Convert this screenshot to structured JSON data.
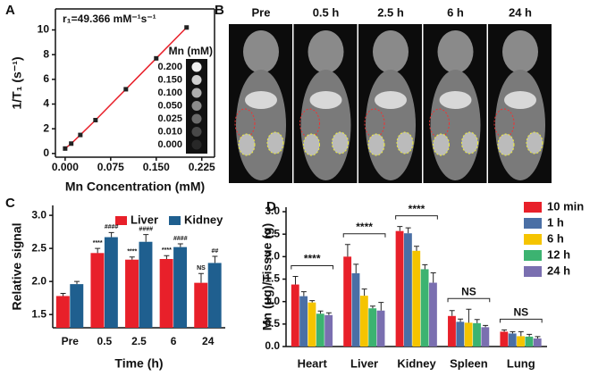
{
  "panels": [
    "A",
    "B",
    "C",
    "D"
  ],
  "images": {
    "labels": [
      "Pre",
      "0.5 h",
      "2.5 h",
      "6 h",
      "24 h"
    ]
  },
  "chart_data": [
    {
      "type": "line",
      "annotation": "r₁=49.366 mM⁻¹s⁻¹",
      "xlabel": "Mn Concentration (mM)",
      "ylabel": "1/T₁ (s⁻¹)",
      "x": [
        0,
        0.01,
        0.025,
        0.05,
        0.1,
        0.15,
        0.2
      ],
      "values": [
        0.4,
        0.8,
        1.5,
        2.7,
        5.2,
        7.7,
        10.2
      ],
      "color": "#e8202a",
      "marker_color": "#222222",
      "xlim": [
        -0.016,
        0.246
      ],
      "xticks": [
        {
          "value": 0,
          "label": "0.000"
        },
        {
          "value": 0.075,
          "label": "0.075"
        },
        {
          "value": 0.15,
          "label": "0.150"
        },
        {
          "value": 0.225,
          "label": "0.225"
        }
      ],
      "ylim": [
        -0.3,
        11.7
      ],
      "yticks": [
        0,
        2,
        4,
        6,
        8,
        10
      ],
      "inset": {
        "title": "Mn (mM)",
        "labels": [
          "0.200",
          "0.150",
          "0.100",
          "0.050",
          "0.025",
          "0.010",
          "0.000"
        ]
      }
    },
    {
      "type": "bar",
      "xlabel": "Time (h)",
      "ylabel": "Relative signal",
      "legend": "top",
      "categories": [
        "Pre",
        "0.5",
        "2.5",
        "6",
        "24"
      ],
      "series": [
        {
          "name": "Liver",
          "color": "#e8202a",
          "values": [
            1.78,
            2.43,
            2.33,
            2.34,
            1.98
          ],
          "errors": [
            0.04,
            0.07,
            0.04,
            0.05,
            0.14
          ],
          "annotations": [
            null,
            "****",
            "****",
            "****",
            "NS"
          ]
        },
        {
          "name": "Kidney",
          "color": "#1f5f8f",
          "values": [
            1.96,
            2.67,
            2.6,
            2.52,
            2.28
          ],
          "errors": [
            0.04,
            0.07,
            0.11,
            0.05,
            0.1
          ],
          "annotations": [
            null,
            "####",
            "####",
            "####",
            "##"
          ]
        }
      ],
      "ylim": [
        1.3,
        3.15
      ],
      "yticks": [
        {
          "value": 1.5,
          "label": "1.5"
        },
        {
          "value": 2,
          "label": "2.0"
        },
        {
          "value": 2.5,
          "label": "2.5"
        },
        {
          "value": 3,
          "label": "3.0"
        }
      ]
    },
    {
      "type": "bar",
      "ylabel": "Mn (μg)/Tissue (g)",
      "legend": "right",
      "categories": [
        "Heart",
        "Liver",
        "Kidney",
        "Spleen",
        "Lung"
      ],
      "series": [
        {
          "name": "10 min",
          "color": "#e8202a",
          "values": [
            1.38,
            2.0,
            2.57,
            0.68,
            0.33
          ],
          "errors": [
            0.18,
            0.27,
            0.1,
            0.12,
            0.04
          ]
        },
        {
          "name": "1 h",
          "color": "#4a6fa5",
          "values": [
            1.12,
            1.63,
            2.52,
            0.55,
            0.29
          ],
          "errors": [
            0.1,
            0.2,
            0.12,
            0.06,
            0.04
          ]
        },
        {
          "name": "6 h",
          "color": "#f5c400",
          "values": [
            0.98,
            1.13,
            2.13,
            0.53,
            0.23
          ],
          "errors": [
            0.04,
            0.15,
            0.1,
            0.3,
            0.1
          ]
        },
        {
          "name": "12 h",
          "color": "#3cb371",
          "values": [
            0.73,
            0.85,
            1.72,
            0.52,
            0.22
          ],
          "errors": [
            0.06,
            0.05,
            0.1,
            0.08,
            0.05
          ]
        },
        {
          "name": "24 h",
          "color": "#7a6fb0",
          "values": [
            0.7,
            0.8,
            1.42,
            0.43,
            0.18
          ],
          "errors": [
            0.05,
            0.18,
            0.22,
            0.04,
            0.04
          ]
        }
      ],
      "group_annotations": [
        "****",
        "****",
        "****",
        "NS",
        "NS"
      ],
      "ylim": [
        0,
        3.1
      ],
      "yticks": [
        {
          "value": 0,
          "label": "0.0"
        },
        {
          "value": 0.5,
          "label": "0.5"
        },
        {
          "value": 1,
          "label": "1.0"
        },
        {
          "value": 1.5,
          "label": "1.5"
        },
        {
          "value": 2,
          "label": "2.0"
        },
        {
          "value": 2.5,
          "label": "2.5"
        },
        {
          "value": 3,
          "label": "3.0"
        }
      ]
    }
  ]
}
